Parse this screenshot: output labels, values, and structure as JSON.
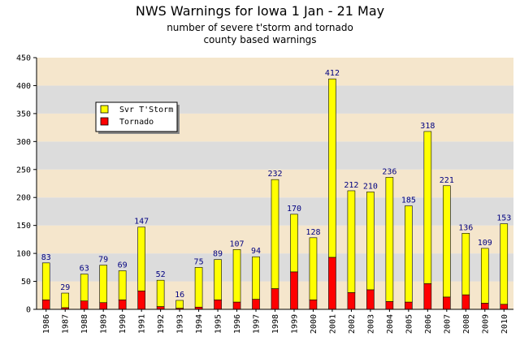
{
  "chart_data": {
    "type": "bar",
    "stacked": true,
    "title": "NWS Warnings for Iowa 1 Jan - 21 May",
    "subtitle_lines": [
      "number of severe t'storm and tornado",
      "county based warnings"
    ],
    "categories": [
      "1986",
      "1987",
      "1988",
      "1989",
      "1990",
      "1991",
      "1992",
      "1993",
      "1994",
      "1995",
      "1996",
      "1997",
      "1998",
      "1999",
      "2000",
      "2001",
      "2002",
      "2003",
      "2004",
      "2005",
      "2006",
      "2007",
      "2008",
      "2009",
      "2010"
    ],
    "totals": [
      83,
      29,
      63,
      79,
      69,
      147,
      52,
      16,
      75,
      89,
      107,
      94,
      232,
      170,
      128,
      412,
      212,
      210,
      236,
      185,
      318,
      221,
      136,
      109,
      153
    ],
    "series": [
      {
        "name": "Tornado",
        "color": "#ff0000",
        "values": [
          17,
          3,
          15,
          12,
          17,
          33,
          5,
          2,
          4,
          17,
          13,
          18,
          37,
          67,
          17,
          93,
          30,
          35,
          14,
          13,
          46,
          22,
          26,
          11,
          9
        ]
      },
      {
        "name": "Svr T'Storm",
        "color": "#ffff00",
        "values": [
          66,
          26,
          48,
          67,
          52,
          114,
          47,
          14,
          71,
          72,
          94,
          76,
          195,
          103,
          111,
          319,
          182,
          175,
          222,
          172,
          272,
          199,
          110,
          98,
          144
        ]
      }
    ],
    "ylim": [
      0,
      450
    ],
    "yticks": [
      0,
      50,
      100,
      150,
      200,
      250,
      300,
      350,
      400,
      450
    ],
    "legend_position": "upper-left",
    "band_colors": [
      "#f5e6cc",
      "#dcdcdc"
    ]
  }
}
